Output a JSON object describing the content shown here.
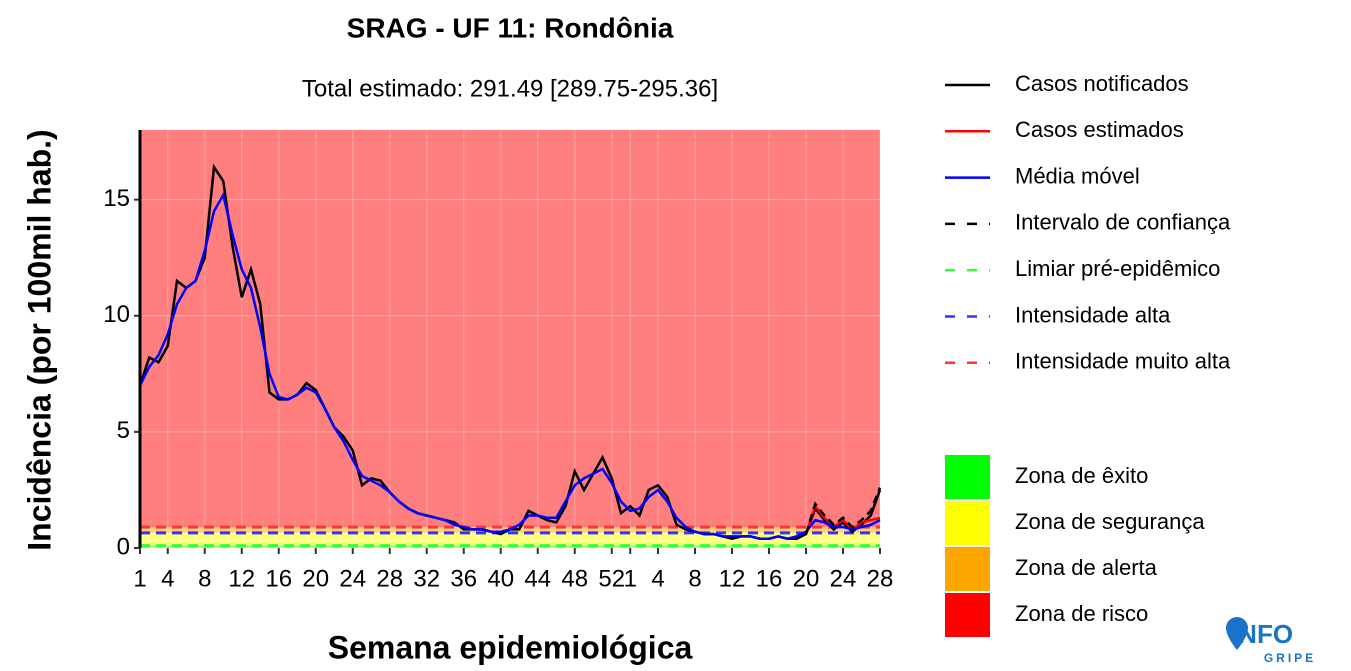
{
  "chart_data": {
    "type": "line",
    "title": "SRAG - UF 11: Rondônia",
    "subtitle": "Total estimado: 291.49 [289.75-295.36]",
    "xlabel": "Semana epidemiológica",
    "ylabel": "Incidência (por 100mil hab.)",
    "categories": [
      "1",
      null,
      null,
      "4",
      null,
      null,
      null,
      "8",
      null,
      null,
      null,
      "12",
      null,
      null,
      null,
      "16",
      null,
      null,
      null,
      "20",
      null,
      null,
      null,
      "24",
      null,
      null,
      null,
      "28",
      null,
      null,
      null,
      "32",
      null,
      null,
      null,
      "36",
      null,
      null,
      null,
      "40",
      null,
      null,
      null,
      "44",
      null,
      null,
      null,
      "48",
      null,
      null,
      null,
      "52",
      null,
      "1",
      null,
      null,
      "4",
      null,
      null,
      null,
      "8",
      null,
      null,
      null,
      "12",
      null,
      null,
      null,
      "16",
      null,
      null,
      null,
      "20",
      null,
      null,
      null,
      "24",
      null,
      null,
      null,
      "28"
    ],
    "ylim": [
      0,
      18
    ],
    "yticks": [
      0,
      5,
      10,
      15
    ],
    "grid": true,
    "series": [
      {
        "name": "Casos notificados",
        "color": "#000000",
        "dashed": false,
        "values": [
          7.0,
          8.2,
          8.0,
          8.7,
          11.5,
          11.2,
          11.5,
          12.5,
          16.4,
          15.8,
          13.0,
          10.8,
          12.0,
          10.5,
          6.7,
          6.4,
          6.4,
          6.6,
          7.1,
          6.8,
          6.0,
          5.2,
          4.8,
          4.2,
          2.7,
          3.0,
          2.9,
          2.4,
          2.0,
          1.7,
          1.5,
          1.4,
          1.3,
          1.2,
          1.1,
          0.8,
          0.8,
          0.8,
          0.7,
          0.6,
          0.8,
          0.8,
          1.6,
          1.4,
          1.2,
          1.1,
          1.8,
          3.3,
          2.5,
          3.2,
          3.9,
          3.0,
          1.5,
          1.8,
          1.4,
          2.5,
          2.7,
          2.2,
          1.0,
          0.8,
          0.7,
          0.6,
          0.6,
          0.5,
          0.4,
          0.5,
          0.5,
          0.4,
          0.4,
          0.5,
          0.4,
          0.4,
          0.6,
          1.7,
          1.2,
          0.8,
          1.1,
          0.7,
          1.0,
          1.4,
          2.5
        ]
      },
      {
        "name": "Casos estimados",
        "color": "#ff0000",
        "dashed": false,
        "values": [
          null,
          null,
          null,
          null,
          null,
          null,
          null,
          null,
          null,
          null,
          null,
          null,
          null,
          null,
          null,
          null,
          null,
          null,
          null,
          null,
          null,
          null,
          null,
          null,
          null,
          null,
          null,
          null,
          null,
          null,
          null,
          null,
          null,
          null,
          null,
          null,
          null,
          null,
          null,
          null,
          null,
          null,
          null,
          null,
          null,
          null,
          null,
          null,
          null,
          null,
          null,
          null,
          null,
          null,
          null,
          null,
          null,
          null,
          null,
          null,
          null,
          null,
          null,
          null,
          null,
          null,
          null,
          null,
          null,
          null,
          null,
          null,
          0.6,
          1.8,
          1.3,
          0.9,
          1.2,
          0.8,
          1.1,
          1.2,
          1.3
        ]
      },
      {
        "name": "Média móvel",
        "color": "#0000ff",
        "dashed": false,
        "values": [
          7.0,
          7.8,
          8.3,
          9.2,
          10.5,
          11.2,
          11.5,
          12.8,
          14.5,
          15.2,
          13.5,
          12.0,
          11.2,
          9.5,
          7.5,
          6.5,
          6.4,
          6.6,
          6.9,
          6.7,
          6.0,
          5.2,
          4.6,
          3.8,
          3.1,
          2.9,
          2.7,
          2.4,
          2.0,
          1.7,
          1.5,
          1.4,
          1.3,
          1.2,
          1.0,
          0.9,
          0.8,
          0.8,
          0.7,
          0.7,
          0.8,
          1.0,
          1.4,
          1.4,
          1.3,
          1.3,
          2.0,
          2.7,
          3.0,
          3.2,
          3.4,
          2.8,
          2.0,
          1.6,
          1.7,
          2.2,
          2.5,
          2.0,
          1.3,
          0.9,
          0.7,
          0.6,
          0.6,
          0.5,
          0.5,
          0.5,
          0.5,
          0.4,
          0.4,
          0.5,
          0.4,
          0.5,
          0.7,
          1.2,
          1.1,
          0.9,
          0.9,
          0.8,
          0.9,
          1.0,
          1.2
        ]
      },
      {
        "name": "Intervalo de confiança",
        "color": "#000000",
        "dashed": true,
        "values": [
          null,
          null,
          null,
          null,
          null,
          null,
          null,
          null,
          null,
          null,
          null,
          null,
          null,
          null,
          null,
          null,
          null,
          null,
          null,
          null,
          null,
          null,
          null,
          null,
          null,
          null,
          null,
          null,
          null,
          null,
          null,
          null,
          null,
          null,
          null,
          null,
          null,
          null,
          null,
          null,
          null,
          null,
          null,
          null,
          null,
          null,
          null,
          null,
          null,
          null,
          null,
          null,
          null,
          null,
          null,
          null,
          null,
          null,
          null,
          null,
          null,
          null,
          null,
          null,
          null,
          null,
          null,
          null,
          null,
          null,
          null,
          null,
          0.6,
          1.9,
          1.4,
          1.0,
          1.3,
          0.9,
          1.2,
          1.6,
          2.6
        ]
      }
    ],
    "thresholds": [
      {
        "name": "Limiar pré-epidêmico",
        "color": "#33ff33",
        "value": 0.1
      },
      {
        "name": "Intensidade alta",
        "color": "#3333ff",
        "value": 0.65
      },
      {
        "name": "Intensidade muito alta",
        "color": "#ff3333",
        "value": 0.9
      }
    ],
    "zones": [
      {
        "name": "Zona de êxito",
        "color": "#00ff00"
      },
      {
        "name": "Zona de segurança",
        "color": "#ffff00"
      },
      {
        "name": "Zona de alerta",
        "color": "#ffa500"
      },
      {
        "name": "Zona de risco",
        "color": "#ff0000"
      }
    ],
    "logo": {
      "main": "INFO",
      "sub": "GRIPE"
    }
  }
}
